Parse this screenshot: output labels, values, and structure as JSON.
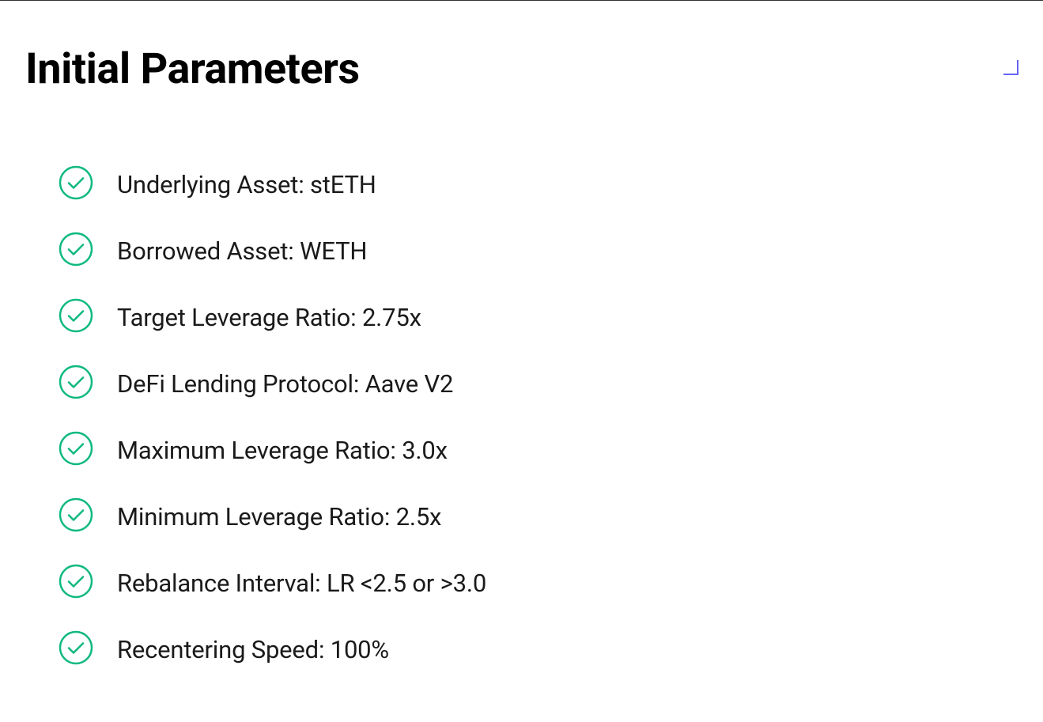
{
  "heading": "Initial Parameters",
  "icon": {
    "stroke_color": "#10b981",
    "stroke_width": 2.5,
    "size": 44
  },
  "corner_mark": {
    "color": "#6366f1",
    "size": 22,
    "stroke_width": 2
  },
  "text_color": "#1a1a1a",
  "heading_color": "#000000",
  "background_color": "#ffffff",
  "parameters": [
    {
      "text": "Underlying Asset: stETH"
    },
    {
      "text": "Borrowed Asset: WETH"
    },
    {
      "text": "Target Leverage Ratio: 2.75x"
    },
    {
      "text": "DeFi Lending Protocol: Aave V2"
    },
    {
      "text": "Maximum Leverage Ratio: 3.0x"
    },
    {
      "text": "Minimum Leverage Ratio: 2.5x"
    },
    {
      "text": "Rebalance Interval: LR <2.5 or >3.0"
    },
    {
      "text": "Recentering Speed: 100%"
    }
  ]
}
